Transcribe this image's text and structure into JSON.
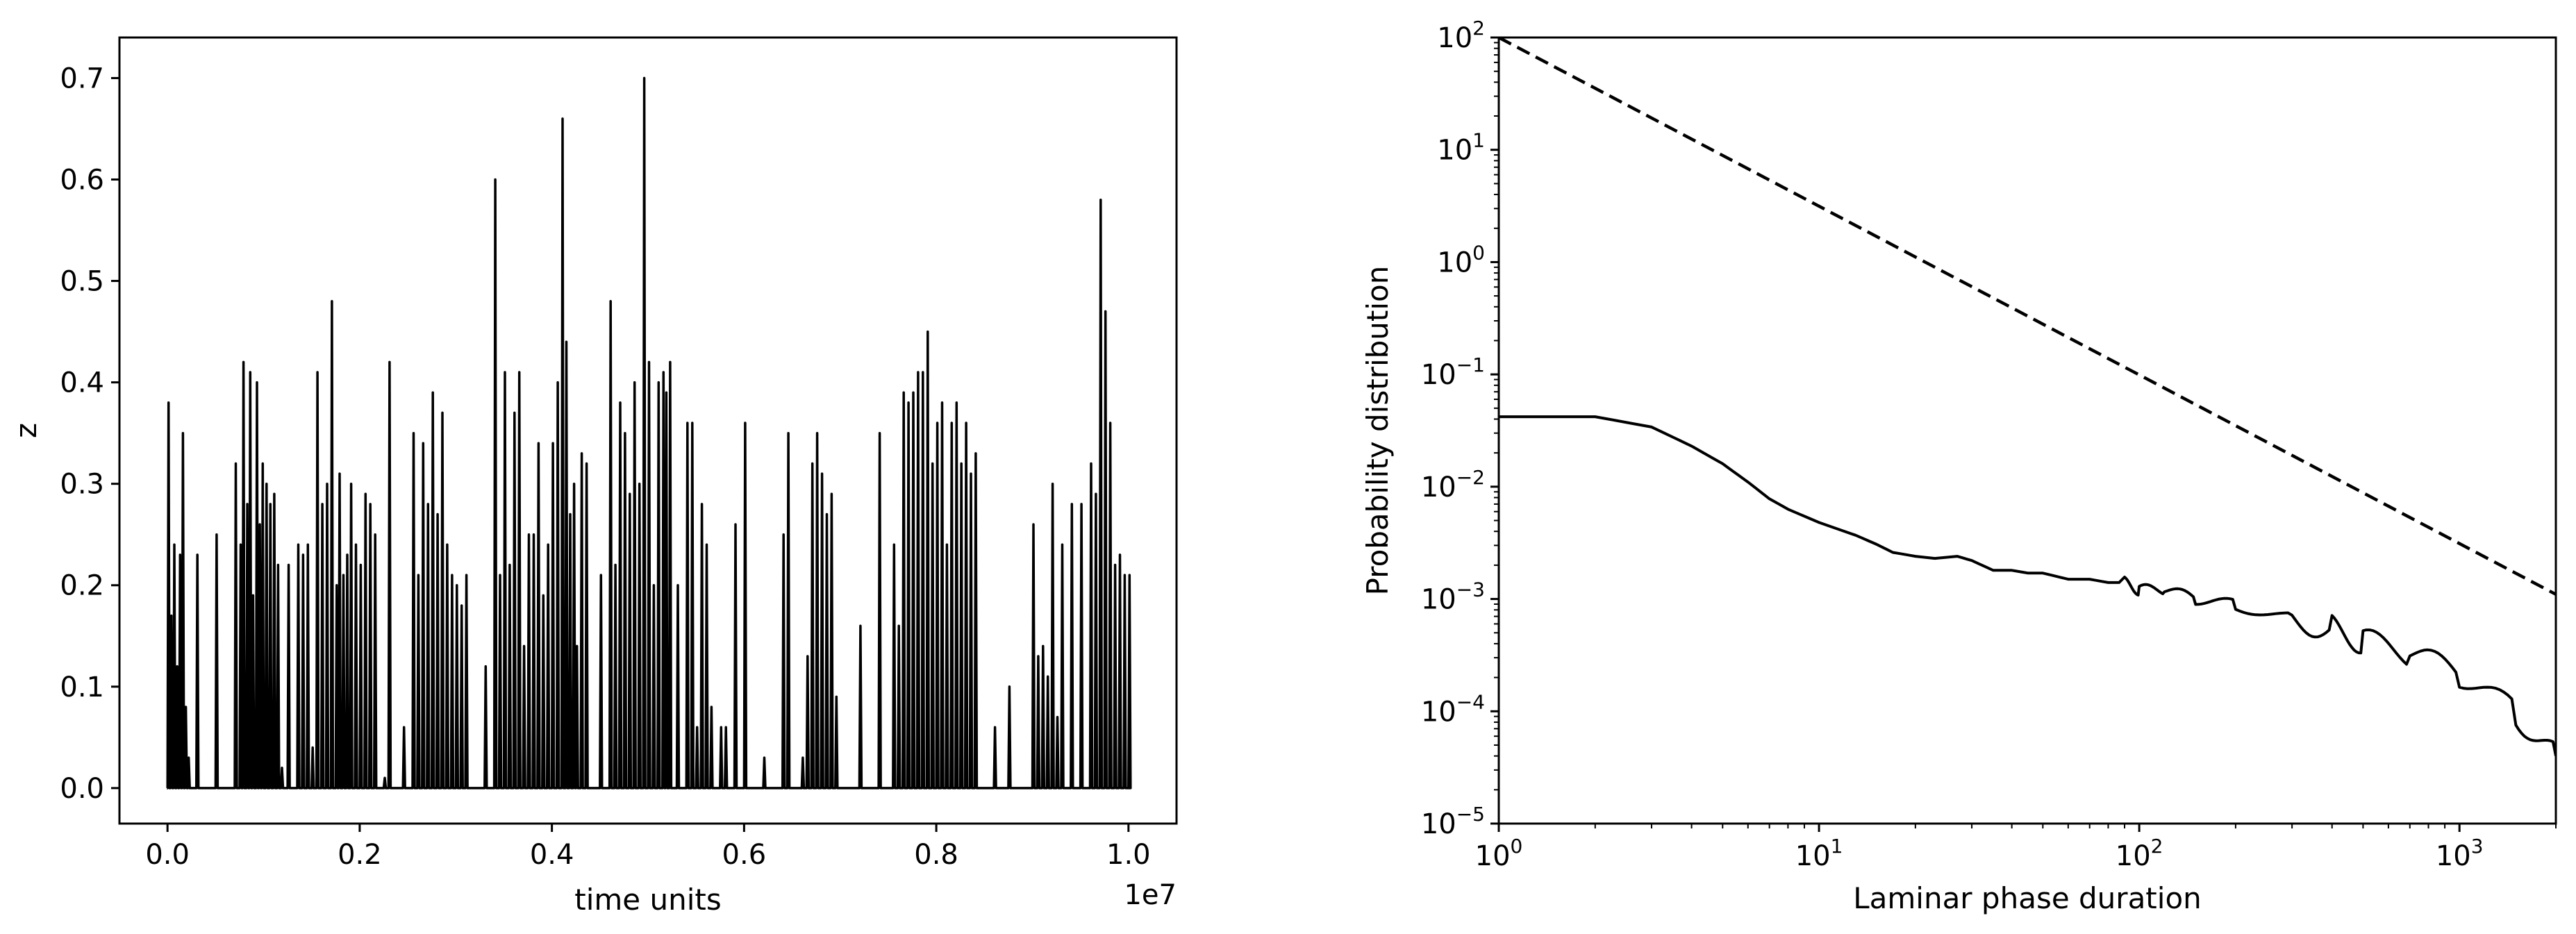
{
  "chart_data": [
    {
      "type": "line",
      "title": "",
      "xlabel": "time units",
      "ylabel": "z",
      "x_offset_label": "1e7",
      "xlim": [
        -0.05,
        1.05
      ],
      "ylim": [
        -0.035,
        0.74
      ],
      "xticks": [
        0.0,
        0.2,
        0.4,
        0.6,
        0.8,
        1.0
      ],
      "xtick_labels": [
        "0.0",
        "0.2",
        "0.4",
        "0.6",
        "0.8",
        "1.0"
      ],
      "yticks": [
        0.0,
        0.1,
        0.2,
        0.3,
        0.4,
        0.5,
        0.6,
        0.7
      ],
      "ytick_labels": [
        "0.0",
        "0.1",
        "0.2",
        "0.3",
        "0.4",
        "0.5",
        "0.6",
        "0.7"
      ],
      "grid": false,
      "color": "#000000",
      "series": [
        {
          "description": "intermittent bursts of z over time (x in units of 1e7); between bursts z = 0",
          "x": [
            0.0,
            0.003,
            0.006,
            0.009,
            0.012,
            0.015,
            0.018,
            0.021,
            0.024,
            0.03,
            0.036,
            0.05,
            0.058,
            0.07,
            0.075,
            0.078,
            0.082,
            0.085,
            0.088,
            0.092,
            0.095,
            0.098,
            0.102,
            0.106,
            0.11,
            0.114,
            0.118,
            0.125,
            0.135,
            0.14,
            0.145,
            0.15,
            0.155,
            0.16,
            0.165,
            0.17,
            0.175,
            0.178,
            0.182,
            0.186,
            0.19,
            0.195,
            0.2,
            0.205,
            0.21,
            0.215,
            0.22,
            0.225,
            0.23,
            0.245,
            0.255,
            0.26,
            0.265,
            0.27,
            0.275,
            0.28,
            0.285,
            0.29,
            0.295,
            0.3,
            0.305,
            0.31,
            0.32,
            0.33,
            0.34,
            0.345,
            0.35,
            0.355,
            0.36,
            0.365,
            0.37,
            0.375,
            0.38,
            0.385,
            0.39,
            0.395,
            0.4,
            0.405,
            0.41,
            0.414,
            0.418,
            0.422,
            0.425,
            0.43,
            0.435,
            0.44,
            0.45,
            0.46,
            0.465,
            0.47,
            0.475,
            0.48,
            0.485,
            0.49,
            0.495,
            0.5,
            0.505,
            0.51,
            0.515,
            0.518,
            0.522,
            0.53,
            0.54,
            0.545,
            0.55,
            0.555,
            0.56,
            0.565,
            0.57,
            0.575,
            0.58,
            0.59,
            0.6,
            0.62,
            0.63,
            0.64,
            0.645,
            0.65,
            0.655,
            0.66,
            0.665,
            0.67,
            0.675,
            0.68,
            0.685,
            0.69,
            0.695,
            0.7,
            0.71,
            0.72,
            0.74,
            0.755,
            0.76,
            0.765,
            0.77,
            0.775,
            0.78,
            0.785,
            0.79,
            0.795,
            0.8,
            0.805,
            0.81,
            0.815,
            0.82,
            0.825,
            0.83,
            0.835,
            0.84,
            0.86,
            0.875,
            0.885,
            0.89,
            0.895,
            0.9,
            0.905,
            0.91,
            0.915,
            0.92,
            0.925,
            0.93,
            0.94,
            0.95,
            0.96,
            0.965,
            0.97,
            0.975,
            0.98,
            0.985,
            0.99,
            0.995,
            1.0
          ],
          "y": [
            0.38,
            0.17,
            0.24,
            0.12,
            0.23,
            0.35,
            0.08,
            0.03,
            0.0,
            0.23,
            0.0,
            0.25,
            0.0,
            0.32,
            0.24,
            0.42,
            0.28,
            0.41,
            0.19,
            0.4,
            0.26,
            0.32,
            0.3,
            0.28,
            0.29,
            0.22,
            0.02,
            0.22,
            0.24,
            0.23,
            0.24,
            0.04,
            0.41,
            0.28,
            0.3,
            0.48,
            0.2,
            0.31,
            0.21,
            0.23,
            0.3,
            0.24,
            0.22,
            0.29,
            0.28,
            0.25,
            0.0,
            0.01,
            0.42,
            0.06,
            0.35,
            0.21,
            0.34,
            0.28,
            0.39,
            0.27,
            0.37,
            0.24,
            0.21,
            0.2,
            0.18,
            0.21,
            0.0,
            0.12,
            0.6,
            0.21,
            0.41,
            0.22,
            0.37,
            0.41,
            0.14,
            0.25,
            0.25,
            0.34,
            0.19,
            0.24,
            0.34,
            0.4,
            0.66,
            0.44,
            0.27,
            0.3,
            0.14,
            0.33,
            0.32,
            0.0,
            0.21,
            0.48,
            0.22,
            0.38,
            0.35,
            0.29,
            0.4,
            0.3,
            0.7,
            0.42,
            0.2,
            0.4,
            0.41,
            0.39,
            0.42,
            0.2,
            0.36,
            0.36,
            0.06,
            0.28,
            0.24,
            0.08,
            0.0,
            0.06,
            0.06,
            0.26,
            0.36,
            0.03,
            0.0,
            0.25,
            0.35,
            0.0,
            0.0,
            0.03,
            0.13,
            0.32,
            0.35,
            0.31,
            0.27,
            0.29,
            0.09,
            0.0,
            0.0,
            0.16,
            0.35,
            0.24,
            0.16,
            0.39,
            0.38,
            0.39,
            0.41,
            0.41,
            0.45,
            0.32,
            0.36,
            0.38,
            0.24,
            0.36,
            0.38,
            0.32,
            0.36,
            0.31,
            0.33,
            0.06,
            0.1,
            0.0,
            0.0,
            0.0,
            0.26,
            0.13,
            0.14,
            0.11,
            0.3,
            0.07,
            0.24,
            0.28,
            0.28,
            0.32,
            0.29,
            0.58,
            0.47,
            0.36,
            0.22,
            0.23,
            0.21,
            0.21
          ]
        }
      ]
    },
    {
      "type": "line",
      "title": "",
      "xlabel": "Laminar phase duration",
      "ylabel": "Probability distribution",
      "xscale": "log",
      "yscale": "log",
      "xlim": [
        1,
        2000
      ],
      "ylim": [
        1e-05,
        100
      ],
      "xticks": [
        1,
        10,
        100,
        1000
      ],
      "xtick_labels": [
        [
          "10",
          "0"
        ],
        [
          "10",
          "1"
        ],
        [
          "10",
          "2"
        ],
        [
          "10",
          "3"
        ]
      ],
      "yticks": [
        1e-05,
        0.0001,
        0.001,
        0.01,
        0.1,
        1,
        10,
        100
      ],
      "ytick_labels": [
        [
          "10",
          "−5"
        ],
        [
          "10",
          "−4"
        ],
        [
          "10",
          "−3"
        ],
        [
          "10",
          "−2"
        ],
        [
          "10",
          "−1"
        ],
        [
          "10",
          "0"
        ],
        [
          "10",
          "1"
        ],
        [
          "10",
          "2"
        ]
      ],
      "grid": false,
      "color": "#000000",
      "series": [
        {
          "style": "solid",
          "x": [
            1,
            2,
            3,
            4,
            5,
            6,
            7,
            8,
            10,
            13,
            15,
            17,
            20,
            23,
            27,
            30,
            35,
            40,
            45,
            50,
            60,
            70,
            80,
            90,
            100,
            120,
            150,
            200,
            300,
            400,
            500,
            700,
            1000,
            1500,
            2000
          ],
          "y": [
            0.042,
            0.042,
            0.034,
            0.023,
            0.016,
            0.011,
            0.0078,
            0.0063,
            0.0048,
            0.0037,
            0.0031,
            0.0026,
            0.0024,
            0.0023,
            0.0024,
            0.0022,
            0.0018,
            0.0018,
            0.0017,
            0.0017,
            0.0015,
            0.0015,
            0.0014,
            0.0014,
            0.0012,
            0.0012,
            0.001,
            0.00088,
            0.00068,
            0.00055,
            0.00042,
            0.00032,
            0.00021,
            9.5e-05,
            4e-05
          ]
        },
        {
          "style": "dashed",
          "x": [
            1,
            2000
          ],
          "y": [
            100,
            0.0011
          ]
        }
      ]
    }
  ]
}
